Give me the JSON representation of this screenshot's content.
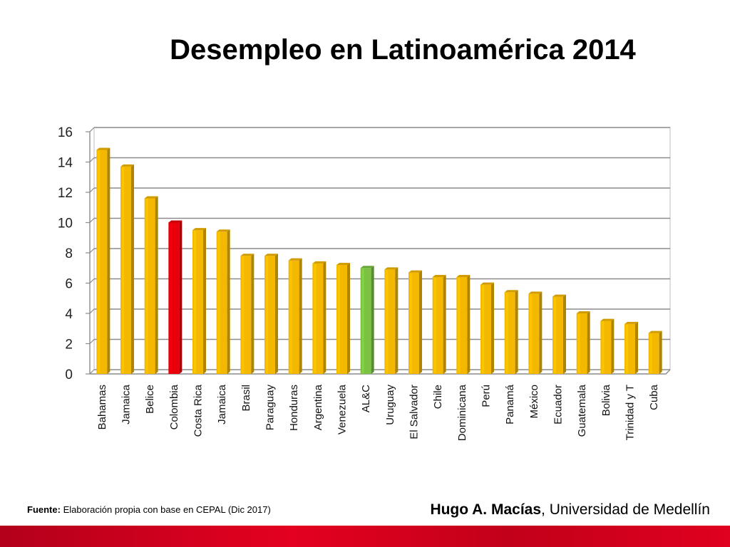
{
  "slide": {
    "title": "Desempleo en Latinoamérica 2014",
    "source_label": "Fuente:",
    "source_text": "Elaboración propia con base en CEPAL (Dic 2017)",
    "author_name": "Hugo A. Macías",
    "author_affiliation": ", Universidad de Medellín"
  },
  "colors": {
    "bar_default": "#f5b800",
    "bar_highlight": "#e8000a",
    "bar_average": "#7cc242",
    "footer_band": "#d6001c"
  },
  "chart_data": {
    "type": "bar",
    "title": "Desempleo en Latinoamérica 2014",
    "xlabel": "",
    "ylabel": "",
    "ylim": [
      0,
      16
    ],
    "yticks": [
      0,
      2,
      4,
      6,
      8,
      10,
      12,
      14,
      16
    ],
    "grid": true,
    "categories": [
      "Bahamas",
      "Jamaica",
      "Belice",
      "Colombia",
      "Costa Rica",
      "Jamaica",
      "Brasil",
      "Paraguay",
      "Honduras",
      "Argentina",
      "Venezuela",
      "AL&C",
      "Uruguay",
      "El Salvador",
      "Chile",
      "Dominicana",
      "Perú",
      "Panamá",
      "México",
      "Ecuador",
      "Guatemala",
      "Bolivia",
      "Trinidad y T",
      "Cuba"
    ],
    "values": [
      14.8,
      13.7,
      11.6,
      10.0,
      9.5,
      9.4,
      7.8,
      7.8,
      7.5,
      7.3,
      7.2,
      7.0,
      6.9,
      6.7,
      6.4,
      6.4,
      5.9,
      5.4,
      5.3,
      5.1,
      4.0,
      3.5,
      3.3,
      2.7
    ],
    "highlight": {
      "Colombia": "highlight",
      "AL&C": "average"
    }
  }
}
